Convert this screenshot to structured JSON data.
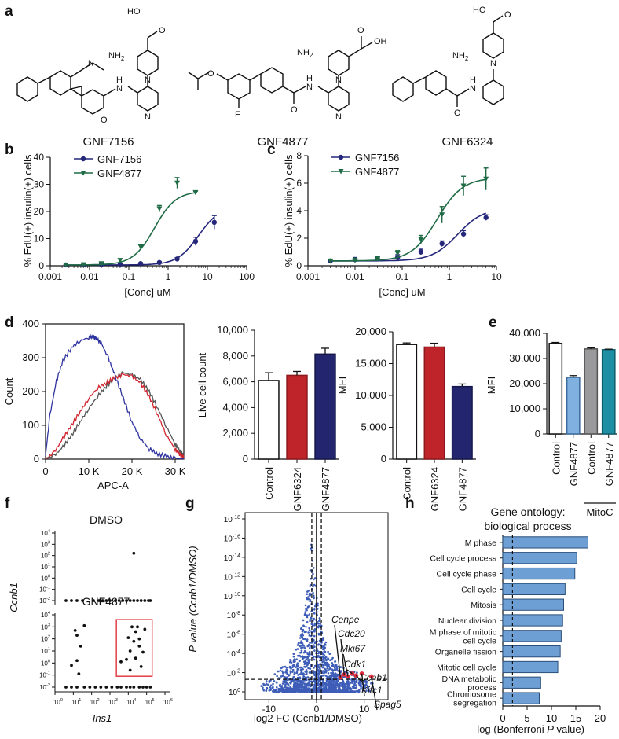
{
  "panel_labels": {
    "a": "a",
    "b": "b",
    "c": "c",
    "d": "d",
    "e": "e",
    "f": "f",
    "g": "g",
    "h": "h"
  },
  "colors": {
    "gnf7156": "#25277a",
    "gnf4877": "#1f6b45",
    "control": "#ffffff",
    "gnf6324": "#c0242b",
    "gnf4877_bar": "#23256f",
    "e_gnf4877": "#7fb0e0",
    "mitoc_control": "#9a9a9c",
    "mitoc_gnf4877": "#1e8fa2",
    "volcano": "#3d5db8",
    "highlight": "#e03040",
    "go_bar": "#6e9fd4"
  },
  "panel_a": {
    "compounds": [
      "GNF7156",
      "GNF4877",
      "GNF6324"
    ],
    "atoms": {
      "hooc": "HO",
      "carbonyl_o": "O",
      "oh": "OH",
      "nh2": "NH",
      "nh2_sub": "2",
      "n": "N",
      "nh": "N",
      "h": "H",
      "f": "F"
    }
  },
  "chart_data": [
    {
      "id": "b",
      "type": "scatter",
      "title": "",
      "xlabel": "[Conc] uM",
      "ylabel": "% EdU(+) insulin(+) cells",
      "xscale": "log",
      "xlim": [
        0.001,
        100
      ],
      "ylim": [
        0,
        40
      ],
      "xticks": [
        "0.001",
        "0.01",
        "0.1",
        "1",
        "10",
        "100"
      ],
      "yticks": [
        "0",
        "10",
        "20",
        "30",
        "40"
      ],
      "legend": [
        "GNF7156",
        "GNF4877"
      ],
      "series": [
        {
          "name": "GNF7156",
          "x": [
            0.0025,
            0.007,
            0.02,
            0.06,
            0.2,
            0.6,
            1.7,
            5.0,
            15.0
          ],
          "y": [
            0.3,
            0.3,
            0.4,
            0.5,
            0.8,
            1.2,
            2.5,
            9.0,
            16.0
          ],
          "err": [
            0.2,
            0.2,
            0.2,
            0.2,
            0.3,
            0.3,
            0.5,
            1.5,
            2.5
          ]
        },
        {
          "name": "GNF4877",
          "x": [
            0.0025,
            0.007,
            0.02,
            0.06,
            0.2,
            0.6,
            1.7,
            5.0
          ],
          "y": [
            0.3,
            0.4,
            0.8,
            2.0,
            7.0,
            21.0,
            30.5,
            27.0
          ],
          "err": [
            0.2,
            0.2,
            0.3,
            0.5,
            0.8,
            1.2,
            2.0,
            0.5
          ]
        }
      ]
    },
    {
      "id": "c",
      "type": "scatter",
      "title": "",
      "xlabel": "[Conc] uM",
      "ylabel": "% EdU(+) insulin(+) cells",
      "xscale": "log",
      "xlim": [
        0.001,
        10
      ],
      "ylim": [
        0,
        8
      ],
      "xticks": [
        "0.001",
        "0.01",
        "0.1",
        "1",
        "10"
      ],
      "yticks": [
        "0",
        "2",
        "4",
        "6",
        "8"
      ],
      "legend": [
        "GNF7156",
        "GNF4877"
      ],
      "series": [
        {
          "name": "GNF7156",
          "x": [
            0.003,
            0.01,
            0.03,
            0.08,
            0.25,
            0.7,
            2.0,
            6.0
          ],
          "y": [
            0.35,
            0.45,
            0.5,
            0.6,
            1.0,
            1.6,
            2.3,
            3.5
          ],
          "err": [
            0.1,
            0.15,
            0.15,
            0.2,
            0.2,
            0.2,
            0.25,
            0.2
          ]
        },
        {
          "name": "GNF4877",
          "x": [
            0.003,
            0.01,
            0.03,
            0.08,
            0.25,
            0.7,
            2.0,
            6.0
          ],
          "y": [
            0.35,
            0.4,
            0.5,
            0.9,
            1.9,
            3.7,
            5.8,
            6.3
          ],
          "err": [
            0.1,
            0.15,
            0.15,
            0.2,
            0.3,
            0.6,
            0.7,
            0.8
          ]
        }
      ]
    },
    {
      "id": "d_hist",
      "type": "line",
      "xlabel": "APC-A",
      "ylabel": "Count",
      "xlim": [
        0,
        32000
      ],
      "ylim": [
        0,
        400
      ],
      "xticks": [
        "0",
        "10 K",
        "20 K",
        "30 K"
      ],
      "yticks": [
        "0",
        "100",
        "200",
        "300",
        "400"
      ],
      "series": [
        {
          "name": "blue",
          "x": [
            0,
            1000,
            2500,
            4000,
            6000,
            8000,
            10000,
            11000,
            12000,
            13000,
            14500,
            16000,
            18000,
            20000,
            22000,
            24000,
            26000,
            28000,
            30000,
            32000
          ],
          "y": [
            10,
            130,
            230,
            290,
            330,
            350,
            360,
            362,
            355,
            340,
            300,
            250,
            180,
            110,
            60,
            30,
            15,
            8,
            3,
            0
          ]
        },
        {
          "name": "red",
          "x": [
            0,
            2000,
            4000,
            6000,
            8000,
            10000,
            12000,
            14000,
            16000,
            18000,
            20000,
            22000,
            24000,
            26000,
            28000,
            30000,
            31000,
            32000
          ],
          "y": [
            0,
            20,
            60,
            100,
            140,
            180,
            210,
            225,
            240,
            250,
            245,
            225,
            185,
            130,
            70,
            30,
            15,
            5
          ]
        },
        {
          "name": "gray",
          "x": [
            0,
            2000,
            4000,
            6000,
            8000,
            10000,
            12000,
            14000,
            16000,
            18000,
            20000,
            22000,
            24000,
            26000,
            28000,
            30000,
            31000,
            32000
          ],
          "y": [
            0,
            10,
            35,
            70,
            110,
            150,
            185,
            215,
            240,
            255,
            250,
            235,
            200,
            150,
            95,
            45,
            25,
            10
          ]
        }
      ]
    },
    {
      "id": "d_live",
      "type": "bar",
      "ylabel": "Live cell count",
      "ylim": [
        0,
        10000
      ],
      "yticks": [
        "0",
        "2,000",
        "4,000",
        "6,000",
        "8,000",
        "10,000"
      ],
      "categories": [
        "Control",
        "GNF6324",
        "GNF4877"
      ],
      "values": [
        6100,
        6500,
        8150
      ],
      "err": [
        600,
        300,
        450
      ]
    },
    {
      "id": "d_mfi",
      "type": "bar",
      "ylabel": "MFI",
      "ylim": [
        0,
        20000
      ],
      "yticks": [
        "0",
        "5,000",
        "10,000",
        "15,000",
        "20,000"
      ],
      "categories": [
        "Control",
        "GNF6324",
        "GNF4877"
      ],
      "values": [
        18000,
        17600,
        11400
      ],
      "err": [
        250,
        600,
        400
      ]
    },
    {
      "id": "e",
      "type": "bar",
      "ylabel": "MFI",
      "ylim": [
        0,
        40000
      ],
      "yticks": [
        "0",
        "10,000",
        "20,000",
        "30,000",
        "40,000"
      ],
      "categories": [
        "Control",
        "GNF4877",
        "Control",
        "GNF4877"
      ],
      "group_label": "MitoC",
      "values": [
        36000,
        22500,
        33800,
        33500
      ],
      "err": [
        400,
        700,
        400,
        200
      ]
    },
    {
      "id": "f",
      "type": "scatter",
      "xlabel": "Ins1",
      "ylabel": "Ccnb1",
      "xscale": "log",
      "yscale": "log",
      "xticks": [
        "10^0",
        "10^1",
        "10^2",
        "10^3",
        "10^4",
        "10^5",
        "10^6"
      ],
      "yticks": [
        "10^-2",
        "10^-1",
        "10^0",
        "10^1",
        "10^2",
        "10^3",
        "10^4"
      ],
      "titles": [
        "DMSO",
        "GNF4877"
      ]
    },
    {
      "id": "g",
      "type": "scatter",
      "xlabel": "log2 FC (Ccnb1/DMSO)",
      "ylabel": "P value (Ccnb1/DMSO)",
      "xlim": [
        -15,
        15
      ],
      "xticks": [
        "-10",
        "0",
        "10"
      ],
      "yticks": [
        "10^0",
        "10^-2",
        "10^-4",
        "10^-6",
        "10^-8",
        "10^-10",
        "10^-12",
        "10^-14",
        "10^-16",
        "10^-18"
      ],
      "highlighted_genes": [
        "Cenpe",
        "Cdc20",
        "Mki67",
        "Cdk1",
        "Ccnb1",
        "Kifc1",
        "Spag5"
      ]
    },
    {
      "id": "h",
      "type": "bar",
      "orientation": "horizontal",
      "title": "Gene ontology: biological process",
      "title_lines": [
        "Gene ontology:",
        "biological process"
      ],
      "xlabel": "–log (Bonferroni P value)",
      "xlabel_parts": [
        "–log (Bonferroni ",
        "P",
        " value)"
      ],
      "xlim": [
        0,
        20
      ],
      "xticks": [
        "0",
        "5",
        "10",
        "15",
        "20"
      ],
      "categories": [
        "M phase",
        "Cell cycle process",
        "Cell cycle phase",
        "Cell cycle",
        "Mitosis",
        "Nuclear division",
        "M phase of mitotic cell cycle",
        "Organelle fission",
        "Mitotic cell cycle",
        "DNA metabolic process",
        "Chromosome segregation"
      ],
      "category_lines": [
        [
          "M phase"
        ],
        [
          "Cell cycle process"
        ],
        [
          "Cell cycle phase"
        ],
        [
          "Cell cycle"
        ],
        [
          "Mitosis"
        ],
        [
          "Nuclear division"
        ],
        [
          "M phase of mitotic",
          "cell cycle"
        ],
        [
          "Organelle fission"
        ],
        [
          "Mitotic cell cycle"
        ],
        [
          "DNA metabolic",
          "process"
        ],
        [
          "Chromosome",
          "segregation"
        ]
      ],
      "values": [
        17.5,
        15.2,
        14.8,
        12.8,
        12.5,
        12.3,
        12.0,
        11.8,
        11.3,
        7.8,
        7.5
      ],
      "threshold": 2
    }
  ]
}
